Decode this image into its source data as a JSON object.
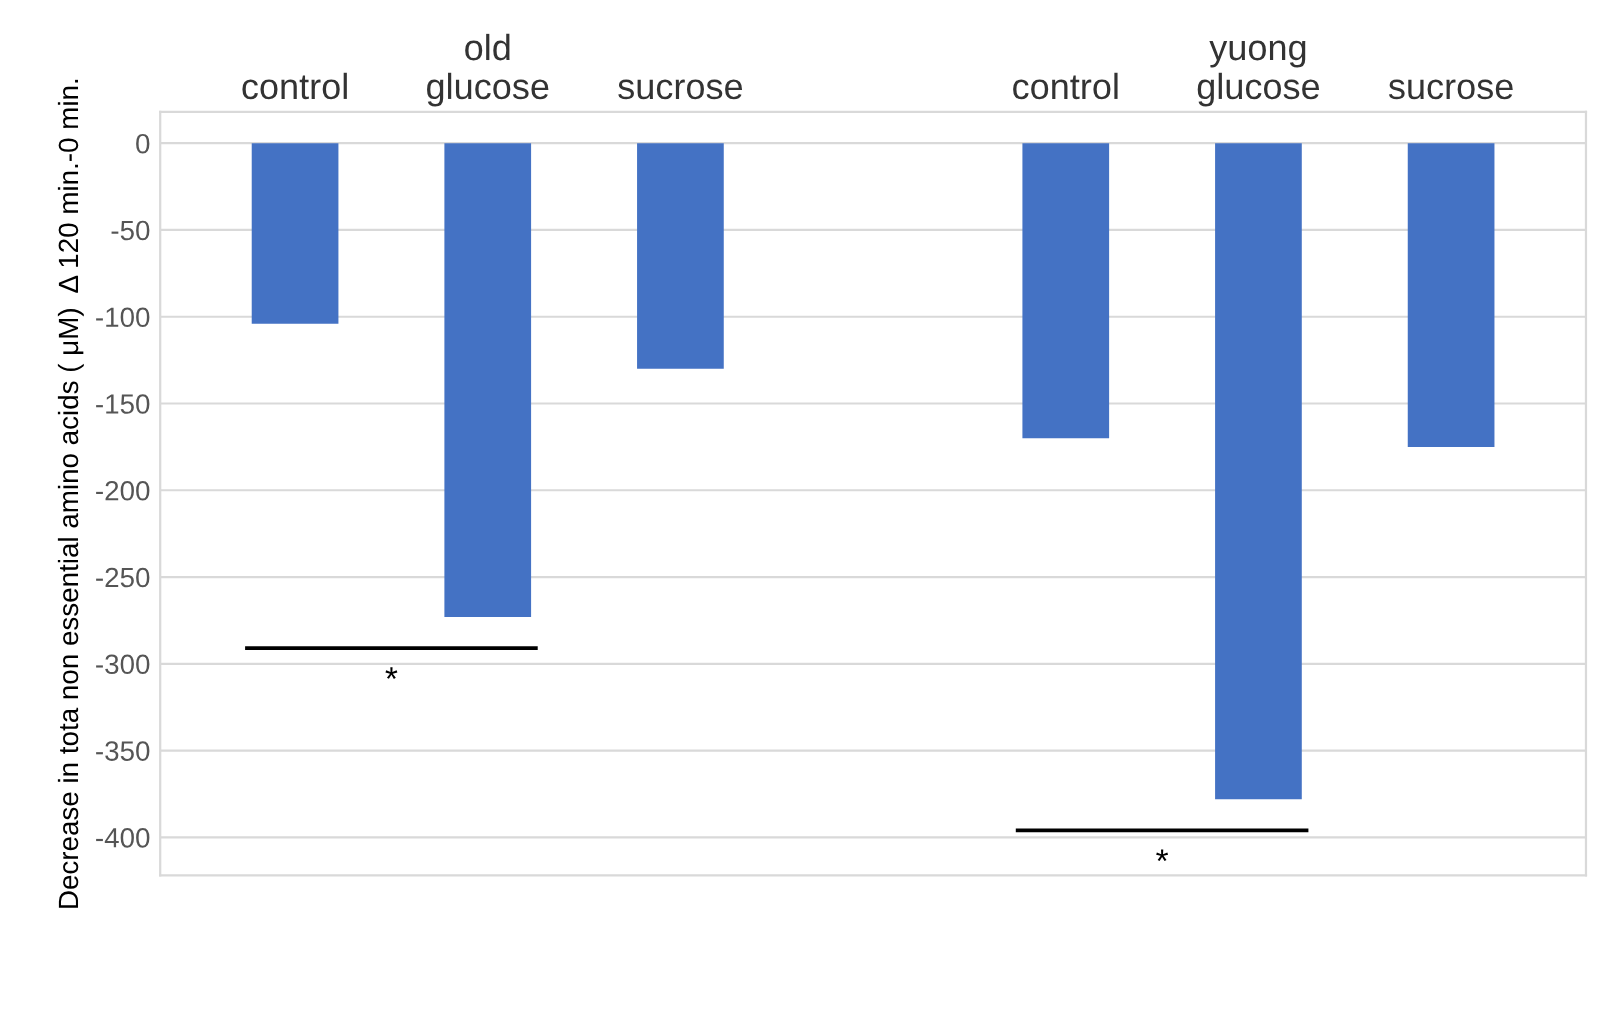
{
  "chart_data": {
    "type": "bar",
    "ylabel": "Decrease in tota non essential amino acids ( μM)  Δ 120 min.-0 min.",
    "categories": [
      "control",
      "old\nglucose",
      "sucrose",
      null,
      "control",
      "yuong\nglucose",
      "sucrose"
    ],
    "values": [
      -104,
      -273,
      -130,
      null,
      -170,
      -378,
      -175
    ],
    "color": "#4472c4",
    "ylim": [
      -422,
      18
    ],
    "yticks": [
      0,
      -50,
      -100,
      -150,
      -200,
      -250,
      -300,
      -350,
      -400
    ],
    "grid": "y",
    "annotations": [
      "*",
      "*"
    ]
  }
}
